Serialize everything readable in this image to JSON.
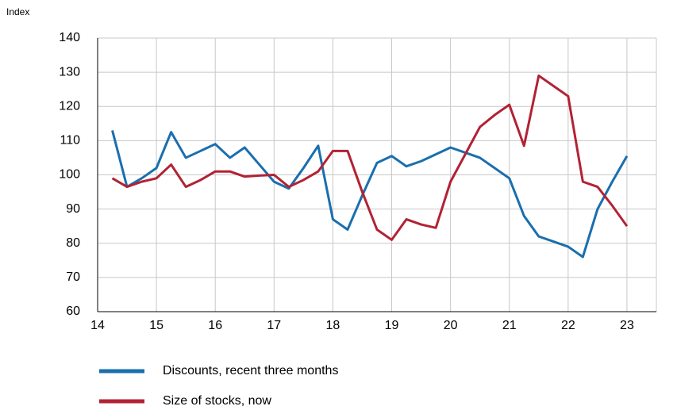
{
  "chart_data": {
    "type": "line",
    "ylabel": "Index",
    "x": [
      14.25,
      14.5,
      14.75,
      15,
      15.25,
      15.5,
      15.75,
      16,
      16.25,
      16.5,
      16.75,
      17,
      17.25,
      17.5,
      17.75,
      18,
      18.25,
      18.5,
      18.75,
      19,
      19.25,
      19.5,
      19.75,
      20,
      20.25,
      20.5,
      20.75,
      21,
      21.25,
      21.5,
      21.75,
      22,
      22.25,
      22.5,
      22.75,
      23
    ],
    "series": [
      {
        "name": "Discounts, recent three months",
        "color": "#1a6fae",
        "values": [
          113,
          96.5,
          99,
          102,
          112.5,
          105,
          107,
          109,
          105,
          108,
          103,
          98,
          96,
          102,
          108.5,
          87,
          84,
          94,
          103.5,
          105.5,
          102.5,
          104,
          106,
          108,
          106.5,
          105,
          102,
          99,
          88,
          82,
          80.5,
          79,
          76,
          90,
          98,
          105.5
        ]
      },
      {
        "name": "Size of stocks, now",
        "color": "#b22234",
        "values": [
          99,
          96.5,
          98,
          99,
          103,
          96.5,
          98.5,
          101,
          101,
          99.5,
          99.8,
          100,
          96.5,
          98.5,
          101,
          107,
          107,
          95,
          84,
          81,
          87,
          85.5,
          84.5,
          98,
          106,
          114,
          117.5,
          120.5,
          108.5,
          129,
          126,
          123,
          98,
          96.5,
          91,
          85
        ]
      }
    ],
    "xlim": [
      14,
      23.5
    ],
    "xticks": [
      14,
      15,
      16,
      17,
      18,
      19,
      20,
      21,
      22,
      23
    ],
    "ylim": [
      60,
      140
    ],
    "yticks": [
      60,
      70,
      80,
      90,
      100,
      110,
      120,
      130,
      140
    ],
    "grid": true
  }
}
